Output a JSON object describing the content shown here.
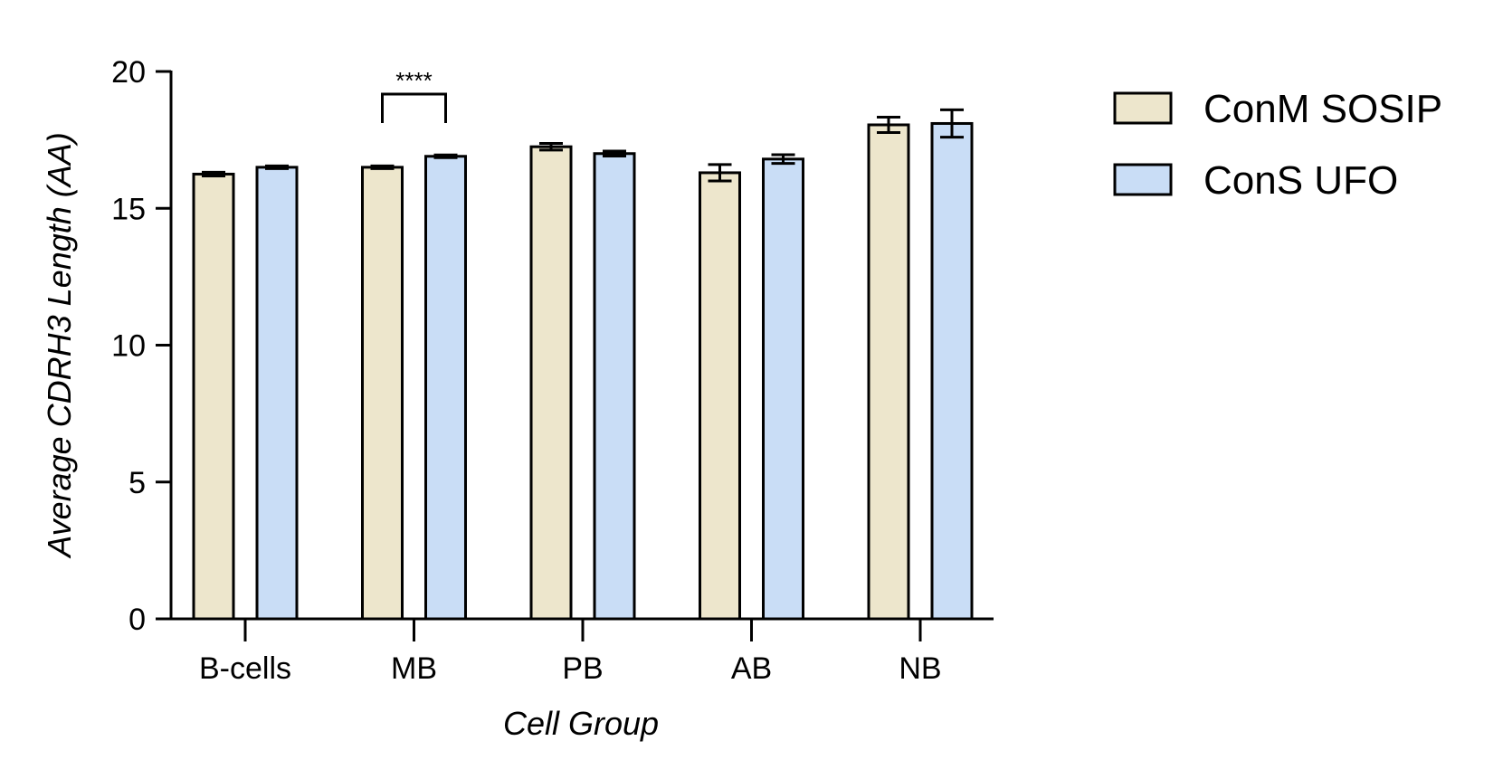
{
  "chart_data": {
    "type": "bar",
    "xlabel": "Cell Group",
    "ylabel": "Average CDRH3 Length (AA)",
    "ylim": [
      0,
      20
    ],
    "yticks": [
      0,
      5,
      10,
      15,
      20
    ],
    "categories": [
      "B-cells",
      "MB",
      "PB",
      "AB",
      "NB"
    ],
    "series": [
      {
        "name": "ConM SOSIP",
        "color": "#ede6cc",
        "values": [
          16.25,
          16.5,
          17.25,
          16.3,
          18.05
        ],
        "errors": [
          0.07,
          0.05,
          0.12,
          0.3,
          0.28
        ]
      },
      {
        "name": "ConS UFO",
        "color": "#c9ddf6",
        "values": [
          16.5,
          16.9,
          17.0,
          16.8,
          18.1
        ],
        "errors": [
          0.05,
          0.05,
          0.09,
          0.16,
          0.5
        ]
      }
    ],
    "legend": {
      "position": "right"
    },
    "grid": false,
    "annotations": [
      {
        "text": "****",
        "category": "MB",
        "between": [
          "ConM SOSIP",
          "ConS UFO"
        ]
      }
    ]
  }
}
